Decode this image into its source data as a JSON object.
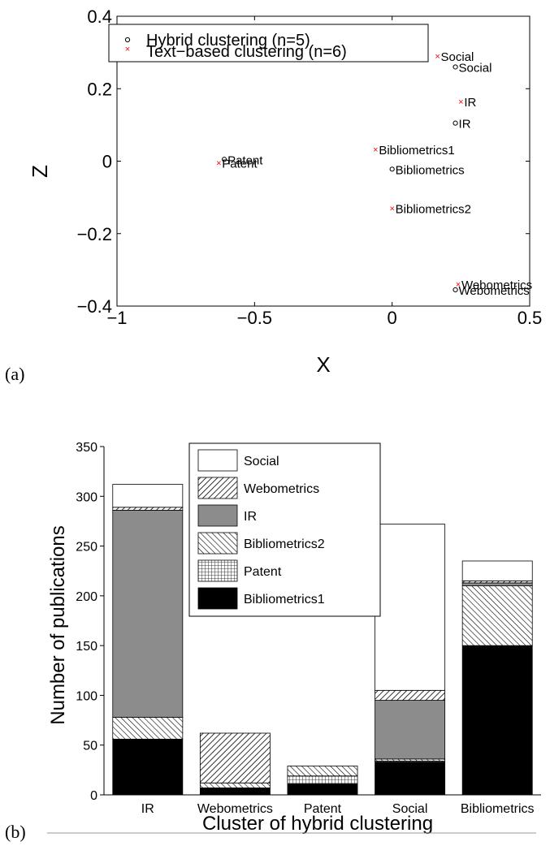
{
  "chart_data": [
    {
      "type": "scatter",
      "panel_label": "(a)",
      "xlabel": "X",
      "ylabel": "Z",
      "xlim": [
        -1,
        0.5
      ],
      "ylim": [
        -0.4,
        0.4
      ],
      "x_ticks": [
        -1,
        -0.5,
        0,
        0.5
      ],
      "x_tick_labels": [
        "−1",
        "−0.5",
        "0",
        "0.5"
      ],
      "y_ticks": [
        -0.4,
        -0.2,
        0,
        0.2,
        0.4
      ],
      "y_tick_labels": [
        "−0.4",
        "−0.2",
        "0",
        "0.2",
        "0.4"
      ],
      "grid": false,
      "legend_position": "top-left",
      "series": [
        {
          "name": "Hybrid clustering (n=5)",
          "marker": "circle",
          "color": "#000000",
          "points": [
            {
              "label": "Social",
              "x": 0.23,
              "y": 0.26
            },
            {
              "label": "IR",
              "x": 0.23,
              "y": 0.105
            },
            {
              "label": "Patent",
              "x": -0.61,
              "y": 0.005
            },
            {
              "label": "Bibliometrics",
              "x": 0.0,
              "y": -0.022
            },
            {
              "label": "Webometrics",
              "x": 0.23,
              "y": -0.355
            }
          ]
        },
        {
          "name": "Text−based clustering (n=6)",
          "marker": "x",
          "color": "#ff0000",
          "points": [
            {
              "label": "Social",
              "x": 0.165,
              "y": 0.29
            },
            {
              "label": "IR",
              "x": 0.25,
              "y": 0.165
            },
            {
              "label": "Bibliometrics1",
              "x": -0.06,
              "y": 0.033
            },
            {
              "label": "Patent",
              "x": -0.63,
              "y": -0.005
            },
            {
              "label": "Bibliometrics2",
              "x": 0.0,
              "y": -0.13
            },
            {
              "label": "Webometrics",
              "x": 0.24,
              "y": -0.34
            }
          ]
        }
      ]
    },
    {
      "type": "bar",
      "stacked": true,
      "panel_label": "(b)",
      "xlabel": "Cluster of hybrid clustering",
      "ylabel": "Number of publications",
      "ylim": [
        0,
        350
      ],
      "y_ticks": [
        0,
        50,
        100,
        150,
        200,
        250,
        300,
        350
      ],
      "categories": [
        "IR",
        "Webometrics",
        "Patent",
        "Social",
        "Bibliometrics"
      ],
      "legend_position": "top-center",
      "series": [
        {
          "name": "Bibliometrics1",
          "pattern": "solid-black",
          "values": [
            56,
            7,
            11,
            33,
            150
          ]
        },
        {
          "name": "Patent",
          "pattern": "grid",
          "values": [
            0,
            0,
            8,
            1,
            0
          ]
        },
        {
          "name": "Bibliometrics2",
          "pattern": "diag-back",
          "values": [
            22,
            5,
            10,
            2,
            60
          ]
        },
        {
          "name": "IR",
          "pattern": "gray",
          "values": [
            208,
            0,
            0,
            59,
            3
          ]
        },
        {
          "name": "Webometrics",
          "pattern": "diag-fwd",
          "values": [
            3,
            50,
            0,
            10,
            2
          ]
        },
        {
          "name": "Social",
          "pattern": "white",
          "values": [
            23,
            0,
            0,
            167,
            20
          ]
        }
      ]
    }
  ]
}
